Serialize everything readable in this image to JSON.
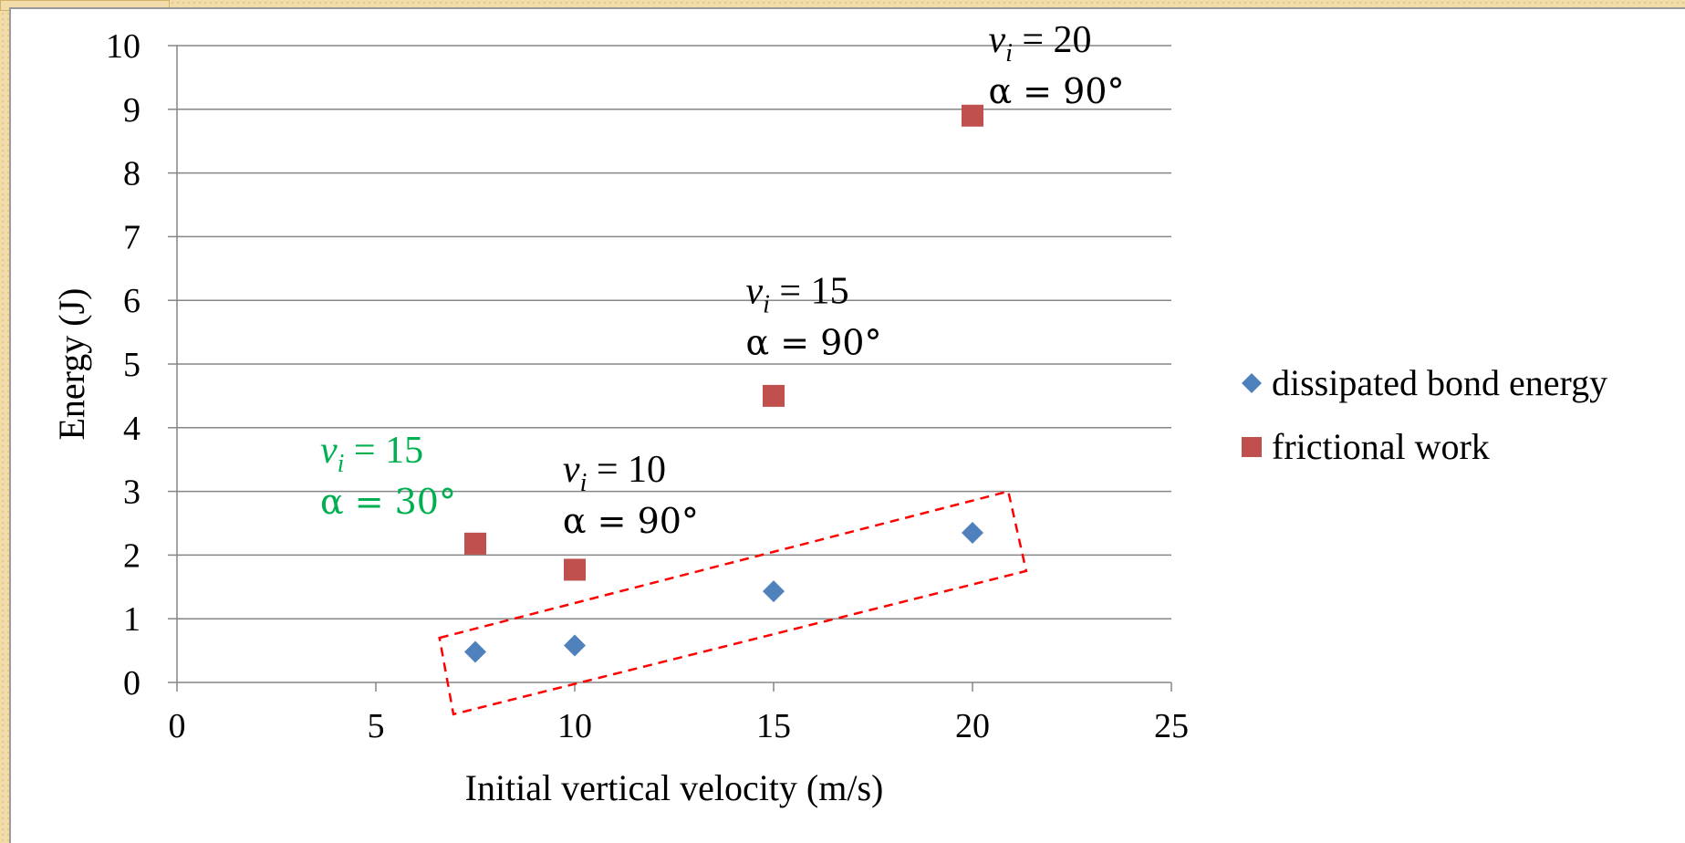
{
  "chart_data": {
    "type": "scatter",
    "xlabel": "Initial vertical velocity (m/s)",
    "ylabel": "Energy (J)",
    "xlim": [
      0,
      25
    ],
    "ylim": [
      0,
      10
    ],
    "x_ticks": [
      "0",
      "5",
      "10",
      "15",
      "20",
      "25"
    ],
    "y_ticks": [
      "0",
      "1",
      "2",
      "3",
      "4",
      "5",
      "6",
      "7",
      "8",
      "9",
      "10"
    ],
    "grid": "horizontal",
    "legend_position": "right",
    "series": [
      {
        "name": "dissipated bond energy",
        "marker": "diamond",
        "color": "#4f81bd",
        "points": [
          {
            "x": 7.5,
            "y": 0.48
          },
          {
            "x": 10,
            "y": 0.58
          },
          {
            "x": 15,
            "y": 1.43
          },
          {
            "x": 20,
            "y": 2.35
          }
        ]
      },
      {
        "name": "frictional work",
        "marker": "square",
        "color": "#c0504d",
        "points": [
          {
            "x": 7.5,
            "y": 2.18
          },
          {
            "x": 10,
            "y": 1.77
          },
          {
            "x": 15,
            "y": 4.5
          },
          {
            "x": 20,
            "y": 8.9
          }
        ]
      }
    ],
    "annotations": [
      {
        "line1_var": "v",
        "line1_sub": "i",
        "line1_rest": " = 15",
        "line2": "α = 30°",
        "color": "#00b050"
      },
      {
        "line1_var": "v",
        "line1_sub": "i",
        "line1_rest": " = 10",
        "line2": "α = 90°",
        "color": "#000000"
      },
      {
        "line1_var": "v",
        "line1_sub": "i",
        "line1_rest": " = 15",
        "line2": "α = 90°",
        "color": "#000000"
      },
      {
        "line1_var": "v",
        "line1_sub": "i",
        "line1_rest": " = 20",
        "line2": "α = 90°",
        "color": "#000000"
      }
    ],
    "highlight_box": {
      "style": "dashed",
      "color": "#ff0000"
    }
  }
}
